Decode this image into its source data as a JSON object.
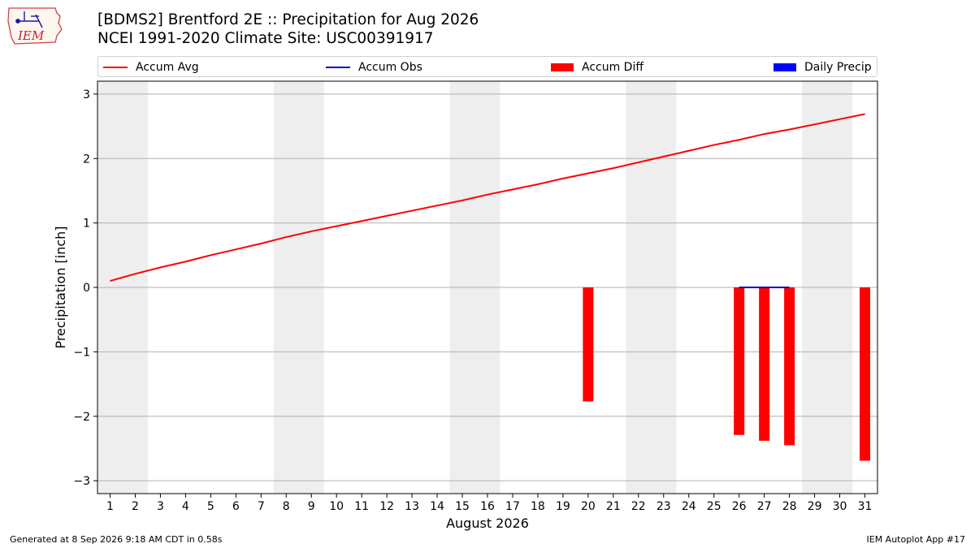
{
  "header": {
    "logo_text": "IEM",
    "title_line1": "[BDMS2] Brentford 2E :: Precipitation for Aug 2026",
    "title_line2": "NCEI 1991-2020 Climate Site: USC00391917"
  },
  "footer": {
    "generated": "Generated at 8 Sep 2026 9:18 AM CDT in 0.58s",
    "app": "IEM Autoplot App #17"
  },
  "colors": {
    "avg": "#ff0000",
    "obs": "#0000cc",
    "diff": "#ff0000",
    "daily": "#0000ff",
    "weekend_band": "#eeeeee",
    "grid": "#b0b0b0"
  },
  "chart_data": {
    "type": "bar",
    "xlabel": "August 2026",
    "ylabel": "Precipitation [inch]",
    "xlim": [
      0.5,
      31.5
    ],
    "ylim": [
      -3.2,
      3.2
    ],
    "yticks": [
      -3,
      -2,
      -1,
      0,
      1,
      2,
      3
    ],
    "ytick_labels": [
      "−3",
      "−2",
      "−1",
      "0",
      "1",
      "2",
      "3"
    ],
    "grid": true,
    "legend_position": "top",
    "legend": [
      "Accum Avg",
      "Accum Obs",
      "Accum Diff",
      "Daily Precip"
    ],
    "days": [
      1,
      2,
      3,
      4,
      5,
      6,
      7,
      8,
      9,
      10,
      11,
      12,
      13,
      14,
      15,
      16,
      17,
      18,
      19,
      20,
      21,
      22,
      23,
      24,
      25,
      26,
      27,
      28,
      29,
      30,
      31
    ],
    "weekend_bands": [
      [
        1,
        2
      ],
      [
        8,
        9
      ],
      [
        15,
        16
      ],
      [
        22,
        23
      ],
      [
        29,
        30
      ]
    ],
    "series": [
      {
        "name": "Accum Avg",
        "type": "line",
        "x": [
          1,
          2,
          3,
          4,
          5,
          6,
          7,
          8,
          9,
          10,
          11,
          12,
          13,
          14,
          15,
          16,
          17,
          18,
          19,
          20,
          21,
          22,
          23,
          24,
          25,
          26,
          27,
          28,
          29,
          30,
          31
        ],
        "values": [
          0.1,
          0.21,
          0.31,
          0.4,
          0.5,
          0.59,
          0.68,
          0.78,
          0.87,
          0.95,
          1.03,
          1.11,
          1.19,
          1.27,
          1.35,
          1.44,
          1.52,
          1.6,
          1.69,
          1.77,
          1.85,
          1.94,
          2.03,
          2.12,
          2.21,
          2.29,
          2.38,
          2.45,
          2.53,
          2.61,
          2.69
        ]
      },
      {
        "name": "Accum Obs",
        "type": "line",
        "x": [
          26,
          27,
          28
        ],
        "values": [
          0.0,
          0.0,
          0.0
        ]
      },
      {
        "name": "Accum Diff",
        "type": "bar",
        "x": [
          20,
          26,
          27,
          28,
          31
        ],
        "values": [
          -1.77,
          -2.29,
          -2.38,
          -2.45,
          -2.69
        ]
      },
      {
        "name": "Daily Precip",
        "type": "bar",
        "x": [],
        "values": []
      }
    ]
  }
}
